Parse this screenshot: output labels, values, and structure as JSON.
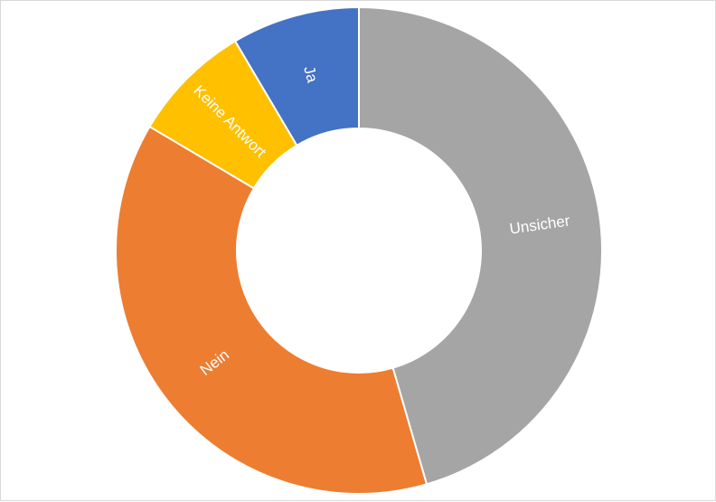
{
  "chart_data": {
    "type": "pie",
    "variant": "doughnut",
    "categories": [
      "Ja",
      "Keine Antwort",
      "Nein",
      "Unsicher"
    ],
    "values": [
      8.5,
      8.0,
      38.0,
      45.5
    ],
    "colors": [
      "#4472c4",
      "#ffc000",
      "#ed7d31",
      "#a5a5a5"
    ],
    "label_color": "#ffffff",
    "title": "",
    "legend": "none",
    "labels_on_slices": true
  }
}
